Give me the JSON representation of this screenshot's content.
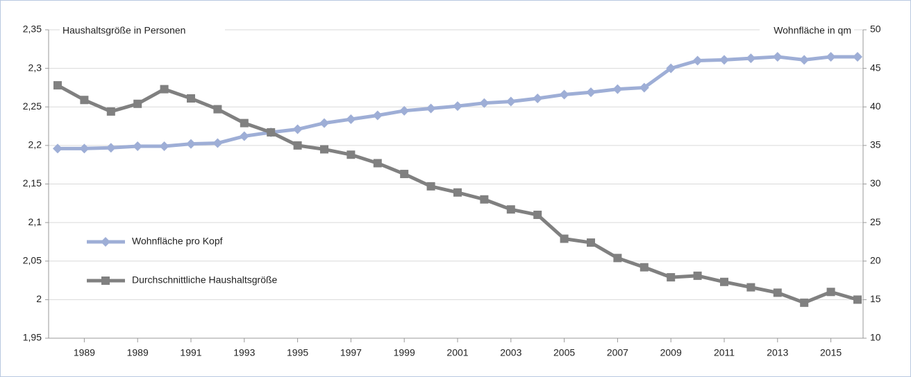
{
  "chart_data": {
    "type": "line",
    "categories": [
      null,
      "1989",
      null,
      "1989",
      null,
      "1991",
      null,
      "1993",
      null,
      "1995",
      null,
      "1997",
      null,
      "1999",
      null,
      "2001",
      null,
      "2003",
      null,
      "2005",
      null,
      "2007",
      null,
      "2009",
      null,
      "2011",
      null,
      "2013",
      null,
      "2015",
      null
    ],
    "y_label": "Haushaltsgröße in Personen",
    "y2_label": "Wohnfläche in qm",
    "ylim": [
      1.95,
      2.35
    ],
    "yticks": [
      {
        "value": 1.95,
        "label": "1,95"
      },
      2,
      {
        "value": 2.05,
        "label": "2,05"
      },
      {
        "value": 2.1,
        "label": "2,1"
      },
      {
        "value": 2.15,
        "label": "2,15"
      },
      {
        "value": 2.2,
        "label": "2,2"
      },
      {
        "value": 2.25,
        "label": "2,25"
      },
      {
        "value": 2.3,
        "label": "2,3"
      },
      {
        "value": 2.35,
        "label": "2,35"
      }
    ],
    "y2lim": [
      10,
      50
    ],
    "y2ticks": [
      10,
      15,
      20,
      25,
      30,
      35,
      40,
      45,
      50
    ],
    "grid": true,
    "legend": "left",
    "series": [
      {
        "name": "Wohnfläche pro Kopf",
        "color": "#9eaed6",
        "marker": "diamond",
        "axis": "y2",
        "values": [
          34.6,
          34.6,
          34.7,
          34.9,
          34.9,
          35.2,
          35.3,
          36.2,
          36.7,
          37.1,
          37.9,
          38.4,
          38.9,
          39.5,
          39.8,
          40.1,
          40.5,
          40.7,
          41.1,
          41.6,
          41.9,
          42.3,
          42.5,
          45.0,
          46.0,
          46.1,
          46.3,
          46.5,
          46.1,
          46.5,
          46.5
        ]
      },
      {
        "name": "Durchschnittliche Haushaltsgröße",
        "color": "#808080",
        "marker": "square",
        "axis": "y",
        "values": [
          2.278,
          2.259,
          2.244,
          2.254,
          2.273,
          2.261,
          2.247,
          2.229,
          2.217,
          2.2,
          2.195,
          2.188,
          2.177,
          2.163,
          2.147,
          2.139,
          2.13,
          2.117,
          2.11,
          2.079,
          2.074,
          2.054,
          2.042,
          2.029,
          2.031,
          2.023,
          2.016,
          2.009,
          1.996,
          2.01,
          2.0
        ]
      }
    ]
  }
}
